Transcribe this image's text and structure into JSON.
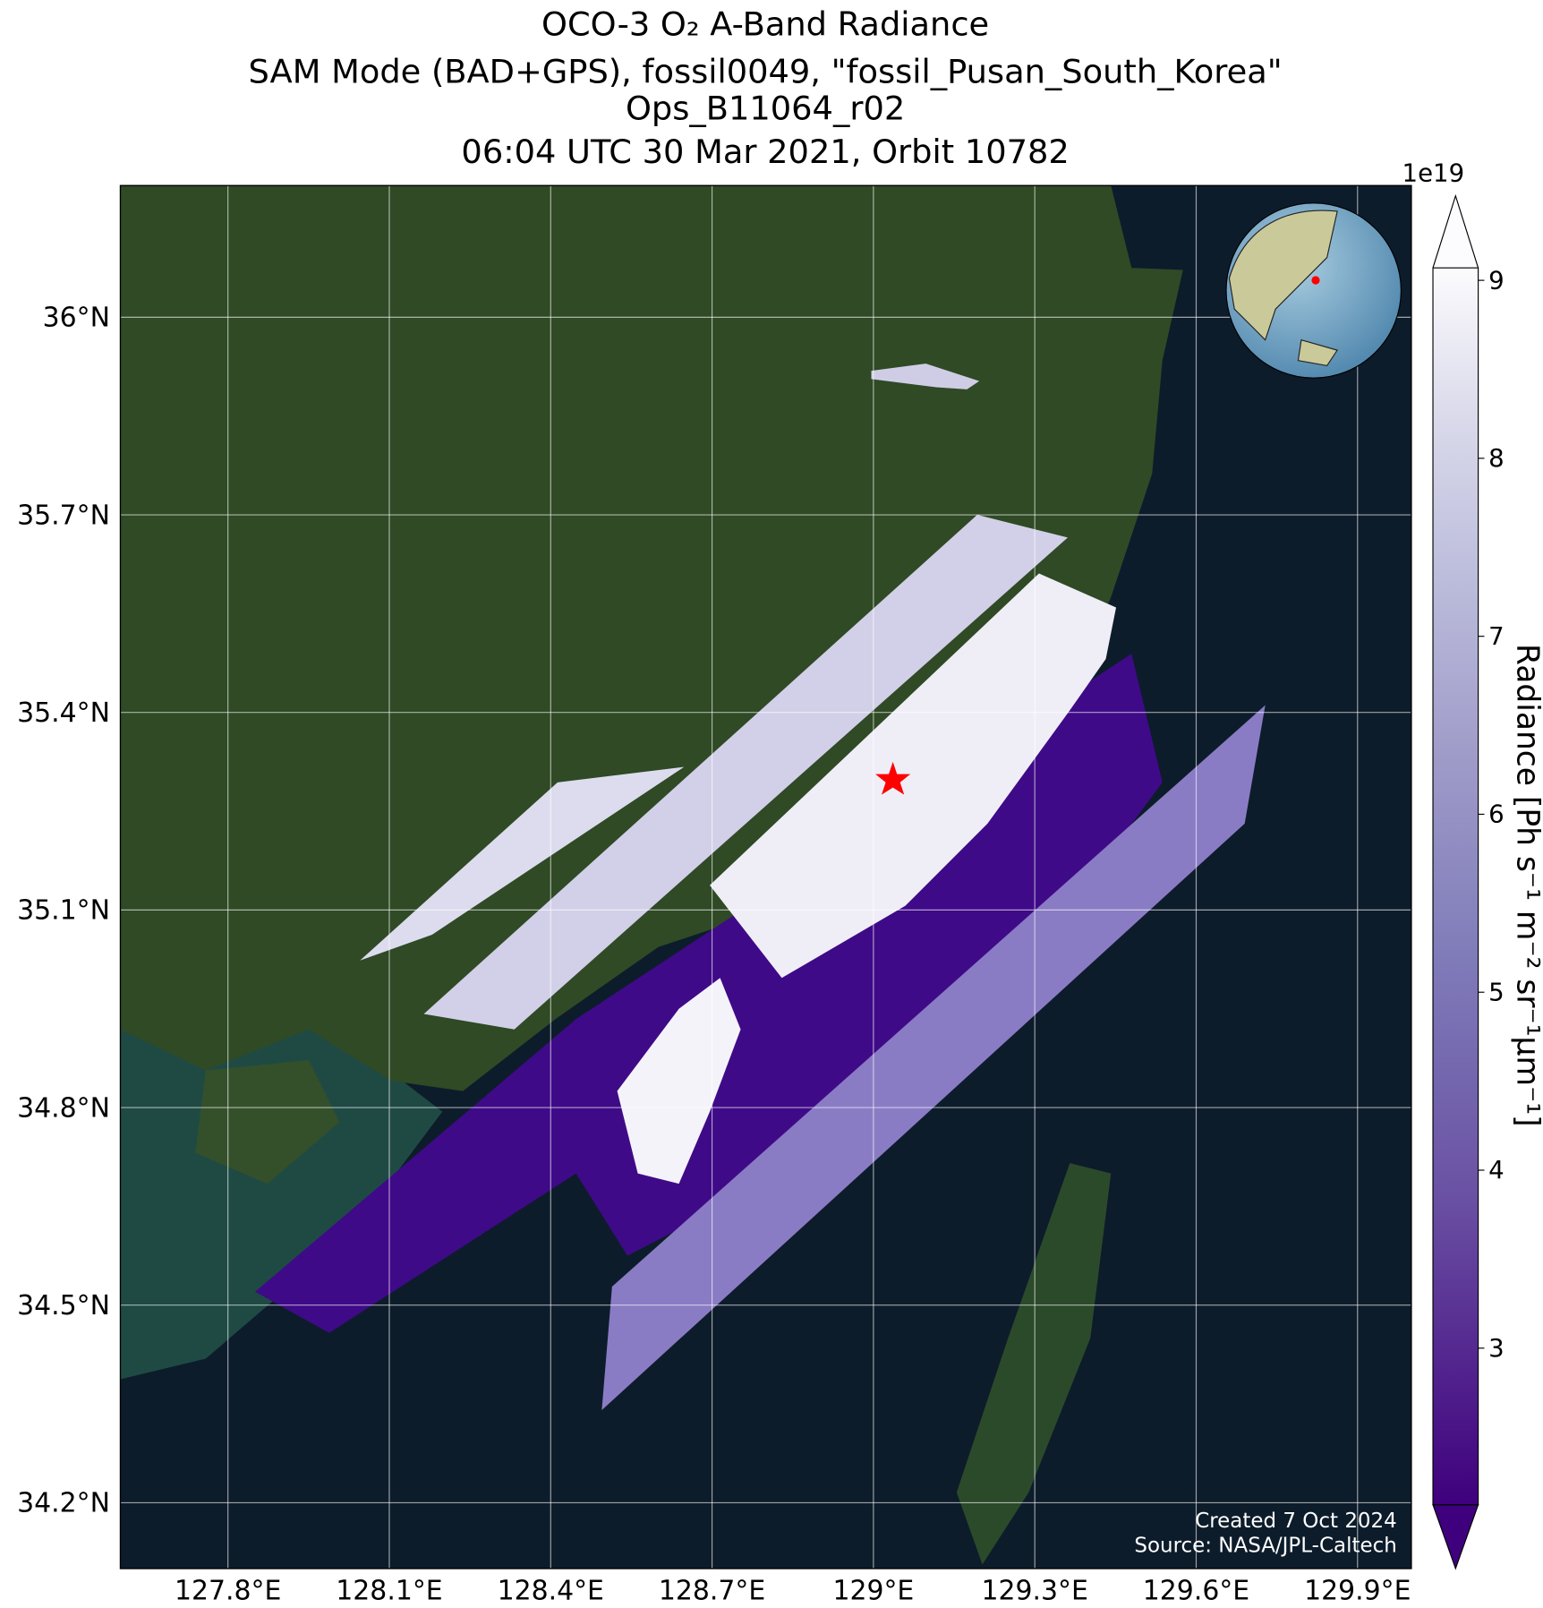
{
  "title": [
    "OCO-3 O₂ A-Band Radiance",
    "SAM Mode (BAD+GPS), fossil0049, \"fossil_Pusan_South_Korea\"",
    "Ops_B11064_r02",
    "06:04 UTC 30 Mar 2021, Orbit 10782"
  ],
  "map": {
    "lonlim": [
      127.6,
      130.0
    ],
    "latlim": [
      34.1,
      36.2
    ],
    "lon_ticks": [
      {
        "value": 127.8,
        "label": "127.8°E"
      },
      {
        "value": 128.1,
        "label": "128.1°E"
      },
      {
        "value": 128.4,
        "label": "128.4°E"
      },
      {
        "value": 128.7,
        "label": "128.7°E"
      },
      {
        "value": 129.0,
        "label": "129°E"
      },
      {
        "value": 129.3,
        "label": "129.3°E"
      },
      {
        "value": 129.6,
        "label": "129.6°E"
      },
      {
        "value": 129.9,
        "label": "129.9°E"
      }
    ],
    "lat_ticks": [
      {
        "value": 36.0,
        "label": "36°N"
      },
      {
        "value": 35.7,
        "label": "35.7°N"
      },
      {
        "value": 35.4,
        "label": "35.4°N"
      },
      {
        "value": 35.1,
        "label": "35.1°N"
      },
      {
        "value": 34.8,
        "label": "34.8°N"
      },
      {
        "value": 34.5,
        "label": "34.5°N"
      },
      {
        "value": 34.2,
        "label": "34.2°N"
      }
    ]
  },
  "colorbar": {
    "label": "Radiance [Ph s⁻¹ m⁻² sr⁻¹µm⁻¹]",
    "multiplier": "1e19",
    "clim": [
      2.12,
      9.07
    ],
    "ticks": [
      3,
      4,
      5,
      6,
      7,
      8,
      9
    ]
  },
  "credits": [
    "Created 7 Oct 2024",
    "Source: NASA/JPL-Caltech"
  ]
}
